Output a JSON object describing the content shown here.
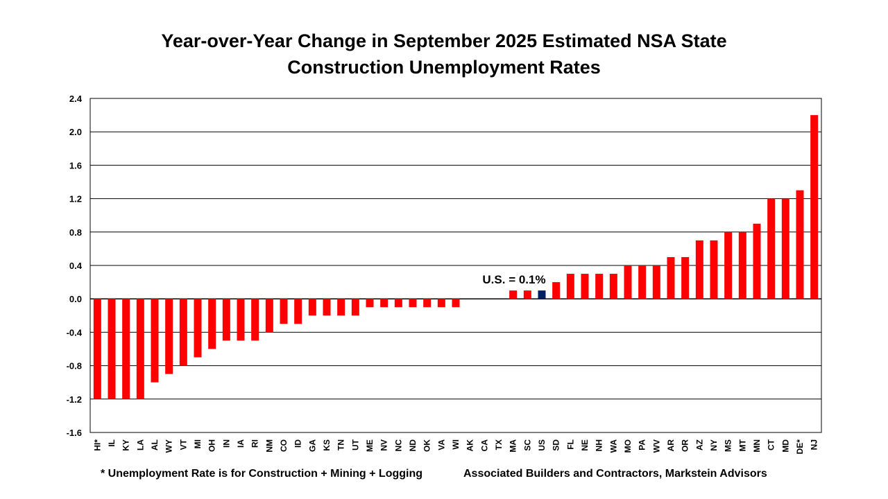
{
  "chart_data": {
    "type": "bar",
    "title_line1": "Year-over-Year Change in September 2025 Estimated NSA State",
    "title_line2": "Construction Unemployment Rates",
    "categories": [
      "HI*",
      "IL",
      "KY",
      "LA",
      "AL",
      "WY",
      "VT",
      "MI",
      "OH",
      "IN",
      "IA",
      "RI",
      "NM",
      "CO",
      "ID",
      "GA",
      "KS",
      "TN",
      "UT",
      "ME",
      "NV",
      "NC",
      "ND",
      "OK",
      "VA",
      "WI",
      "AK",
      "CA",
      "TX",
      "MA",
      "SC",
      "US",
      "SD",
      "FL",
      "NE",
      "NH",
      "WA",
      "MO",
      "PA",
      "WV",
      "AR",
      "OR",
      "AZ",
      "NY",
      "MS",
      "MT",
      "MN",
      "CT",
      "MD",
      "DE*",
      "NJ"
    ],
    "values": [
      -1.2,
      -1.2,
      -1.2,
      -1.2,
      -1.0,
      -0.9,
      -0.8,
      -0.7,
      -0.6,
      -0.5,
      -0.5,
      -0.5,
      -0.4,
      -0.3,
      -0.3,
      -0.2,
      -0.2,
      -0.2,
      -0.2,
      -0.1,
      -0.1,
      -0.1,
      -0.1,
      -0.1,
      -0.1,
      -0.1,
      0.0,
      0.0,
      0.0,
      0.1,
      0.1,
      0.1,
      0.2,
      0.3,
      0.3,
      0.3,
      0.3,
      0.4,
      0.4,
      0.4,
      0.5,
      0.5,
      0.7,
      0.7,
      0.8,
      0.8,
      0.9,
      1.2,
      1.2,
      1.3,
      2.2
    ],
    "highlight_category": "US",
    "ylim": [
      -1.6,
      2.4
    ],
    "yticks": [
      "2.4",
      "2.0",
      "1.6",
      "1.2",
      "0.8",
      "0.4",
      "0.0",
      "-0.4",
      "-0.8",
      "-1.2",
      "-1.6"
    ],
    "grid": true,
    "xlabel": "",
    "ylabel": "",
    "annotation": "U.S. = 0.1%",
    "colors": {
      "bar": "#ff0000",
      "highlight": "#002060",
      "grid": "#000000"
    }
  },
  "footer": {
    "note": "* Unemployment Rate is for Construction + Mining + Logging",
    "source": "Associated Builders and Contractors, Markstein Advisors"
  }
}
